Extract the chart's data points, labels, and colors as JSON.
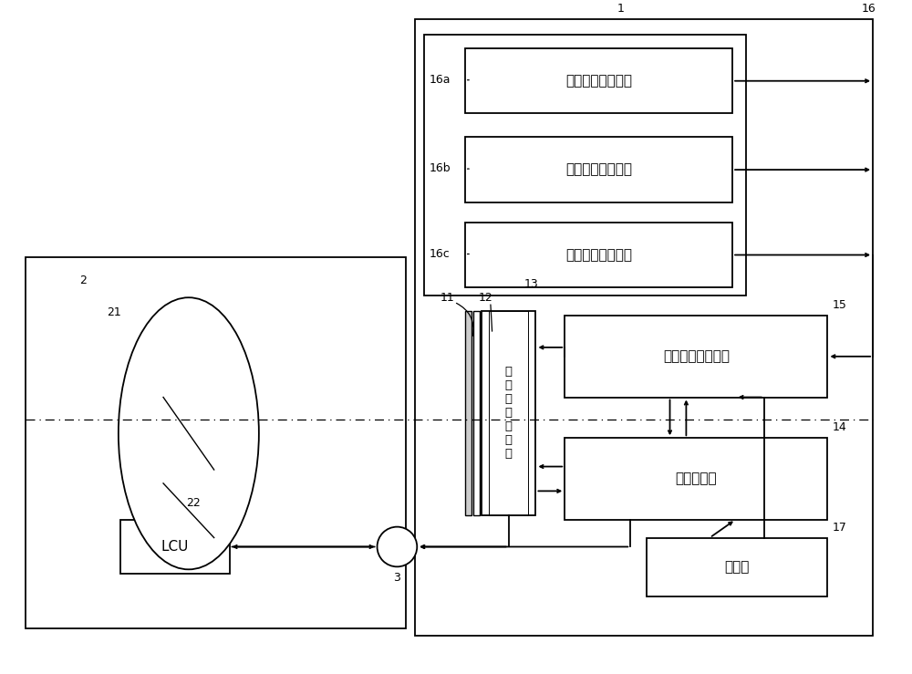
{
  "bg_color": "#ffffff",
  "lc": "#000000",
  "lw": 1.3,
  "sensor_labels": [
    "偏航角速度传感器",
    "俯仰角速度传感器",
    "滚动角速度传感器"
  ],
  "sensor_ids": [
    "16a",
    "16b",
    "16c"
  ],
  "block13_label": "摄\n像\n元\n件\n驱\n动\n部",
  "block15_label": "抖动校正微计算机",
  "block14_label": "系统控制器",
  "block17_label": "操作部",
  "block22_label": "LCU",
  "n1": "1",
  "n2": "2",
  "n3": "3",
  "n11": "11",
  "n12": "12",
  "n13": "13",
  "n14": "14",
  "n15": "15",
  "n16": "16",
  "n17": "17",
  "n21": "21",
  "n22": "22",
  "figw": 10.0,
  "figh": 7.39,
  "dpi": 100
}
